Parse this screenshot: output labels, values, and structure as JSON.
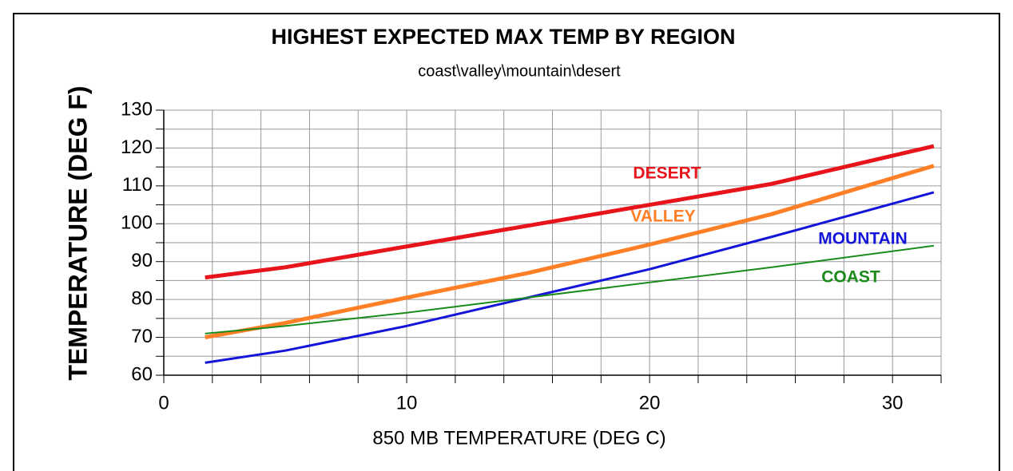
{
  "chart_data": {
    "type": "line",
    "title": "HIGHEST EXPECTED MAX TEMP BY REGION",
    "subtitle": "coast\\valley\\mountain\\desert",
    "x_label": "850 MB TEMPERATURE (DEG C)",
    "y_label": "TEMPERATURE (DEG F)",
    "xlim": [
      0,
      32
    ],
    "ylim": [
      60,
      130
    ],
    "xticks": [
      0,
      10,
      20,
      30
    ],
    "yticks": [
      60,
      70,
      80,
      90,
      100,
      110,
      120,
      130
    ],
    "x_minor_ticks": [
      2,
      4,
      6,
      8,
      12,
      14,
      16,
      18,
      22,
      24,
      26,
      28,
      32
    ],
    "y_minor_ticks": [
      65,
      75,
      85,
      95,
      105,
      115,
      125
    ],
    "grid": true,
    "x": [
      1.7,
      5,
      10,
      15,
      20,
      25,
      31.7
    ],
    "series": [
      {
        "name": "DESERT",
        "color": "#e8141c",
        "values": [
          85.8,
          88.5,
          94,
          99.5,
          105,
          110.5,
          120.5
        ]
      },
      {
        "name": "VALLEY",
        "color": "#ff7f27",
        "values": [
          70,
          73.8,
          80.5,
          87,
          94.5,
          102.5,
          115.3
        ]
      },
      {
        "name": "MOUNTAIN",
        "color": "#1515d9",
        "values": [
          63.3,
          66.5,
          73,
          80.5,
          88,
          96.5,
          108.3
        ]
      },
      {
        "name": "COAST",
        "color": "#1a8a1a",
        "values": [
          71,
          73,
          76.5,
          80.5,
          84.5,
          88.5,
          94.2
        ]
      }
    ]
  }
}
